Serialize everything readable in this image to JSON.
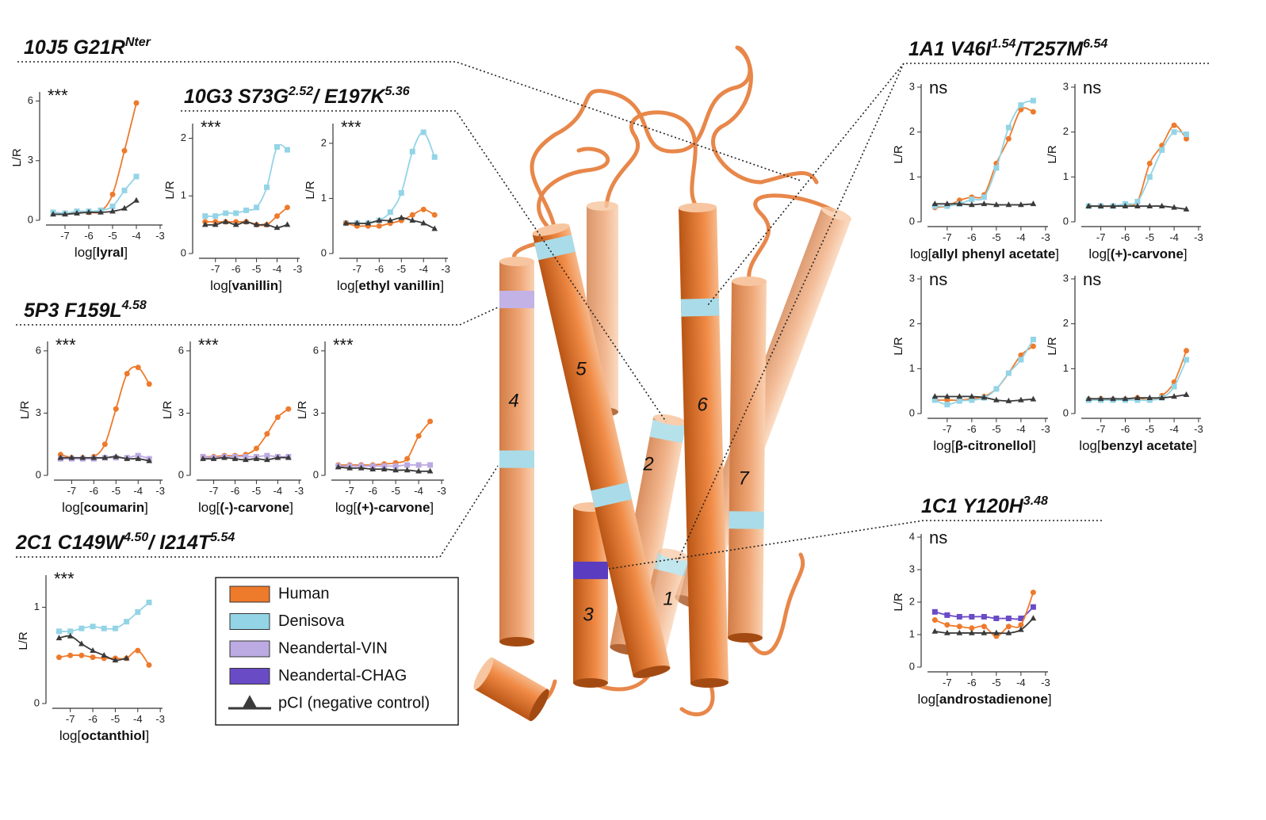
{
  "sections": [
    {
      "segments": [
        {
          "text": "10J5 G21R",
          "sup": false
        },
        {
          "text": "Nter",
          "sup": true
        }
      ]
    },
    {
      "segments": [
        {
          "text": "10G3 S73G",
          "sup": false
        },
        {
          "text": "2.52",
          "sup": true
        },
        {
          "text": "/ E197K",
          "sup": false
        },
        {
          "text": "5.36",
          "sup": true
        }
      ]
    },
    {
      "segments": [
        {
          "text": "5P3 F159L",
          "sup": false
        },
        {
          "text": "4.58",
          "sup": true
        }
      ]
    },
    {
      "segments": [
        {
          "text": "2C1 C149W",
          "sup": false
        },
        {
          "text": "4.50",
          "sup": true
        },
        {
          "text": "/ I214T",
          "sup": false
        },
        {
          "text": "5.54",
          "sup": true
        }
      ]
    },
    {
      "segments": [
        {
          "text": "1A1 V46I",
          "sup": false
        },
        {
          "text": "1.54",
          "sup": true
        },
        {
          "text": "/T257M",
          "sup": false
        },
        {
          "text": "6.54",
          "sup": true
        }
      ]
    },
    {
      "segments": [
        {
          "text": "1C1 Y120H",
          "sup": false
        },
        {
          "text": "3.48",
          "sup": true
        }
      ]
    }
  ],
  "legend": [
    {
      "name": "Human",
      "color": "#ee7a2c",
      "marker": "circle",
      "swatch": "box"
    },
    {
      "name": "Denisova",
      "color": "#93d4e6",
      "marker": "square",
      "swatch": "box"
    },
    {
      "name": "Neandertal-VIN",
      "color": "#bcaae2",
      "marker": "square",
      "swatch": "box"
    },
    {
      "name": "Neandertal-CHAG",
      "color": "#6a4bc6",
      "marker": "square",
      "swatch": "box"
    },
    {
      "name": "pCI (negative control)",
      "color": "#3a3a3a",
      "marker": "triangle",
      "swatch": "line"
    }
  ],
  "helix_labels": [
    "1",
    "2",
    "3",
    "4",
    "5",
    "6",
    "7"
  ],
  "chart_data": [
    {
      "type": "line",
      "ylabel": "L/R",
      "xlabel": "log[lyral]",
      "annotation": "***",
      "xlim": [
        -7.8,
        -2.9
      ],
      "xticks": [
        -7,
        -6,
        -5,
        -4,
        -3
      ],
      "ylim": [
        0,
        6.3
      ],
      "yticks": [
        0,
        3,
        6
      ],
      "x": [
        -7.5,
        -7,
        -6.5,
        -6,
        -5.5,
        -5,
        -4.5,
        -4
      ],
      "series": [
        {
          "name": "Human",
          "values": [
            0.4,
            0.35,
            0.4,
            0.4,
            0.45,
            1.3,
            3.5,
            5.9
          ]
        },
        {
          "name": "Denisova",
          "values": [
            0.4,
            0.35,
            0.45,
            0.45,
            0.5,
            0.7,
            1.5,
            2.2
          ]
        },
        {
          "name": "pCI (negative control)",
          "values": [
            0.3,
            0.3,
            0.35,
            0.4,
            0.4,
            0.45,
            0.6,
            1.0
          ]
        }
      ]
    },
    {
      "type": "line",
      "ylabel": "L/R",
      "xlabel": "log[vanillin]",
      "annotation": "***",
      "xlim": [
        -7.8,
        -2.9
      ],
      "xticks": [
        -7,
        -6,
        -5,
        -4,
        -3
      ],
      "ylim": [
        0,
        2.2
      ],
      "yticks": [
        0,
        1,
        2
      ],
      "x": [
        -7.5,
        -7,
        -6.5,
        -6,
        -5.5,
        -5,
        -4.5,
        -4,
        -3.5
      ],
      "series": [
        {
          "name": "Denisova",
          "values": [
            0.65,
            0.65,
            0.7,
            0.7,
            0.75,
            0.8,
            1.15,
            1.85,
            1.8
          ]
        },
        {
          "name": "Human",
          "values": [
            0.55,
            0.55,
            0.55,
            0.55,
            0.55,
            0.5,
            0.5,
            0.65,
            0.8
          ]
        },
        {
          "name": "pCI (negative control)",
          "values": [
            0.5,
            0.5,
            0.55,
            0.5,
            0.55,
            0.5,
            0.5,
            0.45,
            0.5
          ]
        }
      ]
    },
    {
      "type": "line",
      "ylabel": "L/R",
      "xlabel": "log[ethyl vanillin]",
      "annotation": "***",
      "xlim": [
        -7.8,
        -2.9
      ],
      "xticks": [
        -7,
        -6,
        -5,
        -4,
        -3
      ],
      "ylim": [
        0,
        2.3
      ],
      "yticks": [
        0,
        1,
        2
      ],
      "x": [
        -7.5,
        -7,
        -6.5,
        -6,
        -5.5,
        -5,
        -4.5,
        -4,
        -3.5
      ],
      "series": [
        {
          "name": "Denisova",
          "values": [
            0.55,
            0.55,
            0.55,
            0.6,
            0.75,
            1.1,
            1.85,
            2.2,
            1.75
          ]
        },
        {
          "name": "Human",
          "values": [
            0.55,
            0.5,
            0.5,
            0.5,
            0.55,
            0.6,
            0.7,
            0.8,
            0.7
          ]
        },
        {
          "name": "pCI (negative control)",
          "values": [
            0.55,
            0.55,
            0.55,
            0.6,
            0.6,
            0.65,
            0.6,
            0.55,
            0.45
          ]
        }
      ]
    },
    {
      "type": "line",
      "ylabel": "L/R",
      "xlabel": "log[coumarin]",
      "annotation": "***",
      "xlim": [
        -7.8,
        -2.9
      ],
      "xticks": [
        -7,
        -6,
        -5,
        -4,
        -3
      ],
      "ylim": [
        0,
        6.3
      ],
      "yticks": [
        0,
        3,
        6
      ],
      "x": [
        -7.5,
        -7,
        -6.5,
        -6,
        -5.5,
        -5,
        -4.5,
        -4,
        -3.5
      ],
      "series": [
        {
          "name": "Human",
          "values": [
            1.0,
            0.85,
            0.85,
            0.9,
            1.5,
            3.2,
            4.9,
            5.2,
            4.4
          ]
        },
        {
          "name": "Neandertal-VIN",
          "values": [
            0.8,
            0.8,
            0.8,
            0.8,
            0.85,
            0.85,
            0.85,
            0.95,
            0.8
          ]
        },
        {
          "name": "pCI (negative control)",
          "values": [
            0.85,
            0.85,
            0.85,
            0.85,
            0.85,
            0.9,
            0.8,
            0.8,
            0.7
          ]
        }
      ]
    },
    {
      "type": "line",
      "ylabel": "L/R",
      "xlabel": "log[(-)-carvone]",
      "annotation": "***",
      "xlim": [
        -7.8,
        -2.9
      ],
      "xticks": [
        -7,
        -6,
        -5,
        -4,
        -3
      ],
      "ylim": [
        0,
        6.3
      ],
      "yticks": [
        0,
        3,
        6
      ],
      "x": [
        -7.5,
        -7,
        -6.5,
        -6,
        -5.5,
        -5,
        -4.5,
        -4,
        -3.5
      ],
      "series": [
        {
          "name": "Human",
          "values": [
            0.9,
            0.9,
            0.95,
            0.95,
            1.0,
            1.3,
            2.0,
            2.8,
            3.2
          ]
        },
        {
          "name": "Neandertal-VIN",
          "values": [
            0.9,
            0.85,
            0.9,
            0.9,
            0.9,
            0.9,
            0.95,
            0.9,
            0.9
          ]
        },
        {
          "name": "pCI (negative control)",
          "values": [
            0.8,
            0.8,
            0.85,
            0.8,
            0.75,
            0.8,
            0.75,
            0.85,
            0.85
          ]
        }
      ]
    },
    {
      "type": "line",
      "ylabel": "L/R",
      "xlabel": "log[(+)-carvone]",
      "annotation": "***",
      "xlim": [
        -7.8,
        -2.9
      ],
      "xticks": [
        -7,
        -6,
        -5,
        -4,
        -3
      ],
      "ylim": [
        0,
        6.3
      ],
      "yticks": [
        0,
        3,
        6
      ],
      "x": [
        -7.5,
        -7,
        -6.5,
        -6,
        -5.5,
        -5,
        -4.5,
        -4,
        -3.5
      ],
      "series": [
        {
          "name": "Human",
          "values": [
            0.5,
            0.5,
            0.5,
            0.5,
            0.55,
            0.6,
            0.8,
            1.9,
            2.6
          ]
        },
        {
          "name": "Neandertal-VIN",
          "values": [
            0.45,
            0.45,
            0.45,
            0.45,
            0.45,
            0.45,
            0.5,
            0.5,
            0.5
          ]
        },
        {
          "name": "pCI (negative control)",
          "values": [
            0.4,
            0.35,
            0.35,
            0.3,
            0.3,
            0.25,
            0.25,
            0.2,
            0.2
          ]
        }
      ]
    },
    {
      "type": "line",
      "ylabel": "L/R",
      "xlabel": "log[octanthiol]",
      "annotation": "***",
      "xlim": [
        -7.8,
        -2.9
      ],
      "xticks": [
        -7,
        -6,
        -5,
        -4,
        -3
      ],
      "ylim": [
        0,
        1.3
      ],
      "yticks": [
        0,
        1
      ],
      "x": [
        -7.5,
        -7,
        -6.5,
        -6,
        -5.5,
        -5,
        -4.5,
        -4,
        -3.5
      ],
      "series": [
        {
          "name": "Denisova",
          "values": [
            0.75,
            0.75,
            0.78,
            0.8,
            0.78,
            0.78,
            0.85,
            0.95,
            1.05
          ]
        },
        {
          "name": "Human",
          "values": [
            0.48,
            0.5,
            0.5,
            0.48,
            0.47,
            0.47,
            0.47,
            0.55,
            0.4
          ]
        },
        {
          "name": "pCI (negative control)",
          "values": [
            0.68,
            0.7,
            0.62,
            0.55,
            0.5,
            0.45,
            0.47,
            null,
            null
          ]
        }
      ]
    },
    {
      "type": "line",
      "ylabel": "L/R",
      "xlabel": "log[allyl phenyl acetate]",
      "annotation": "ns",
      "xlim": [
        -7.8,
        -2.9
      ],
      "xticks": [
        -7,
        -6,
        -5,
        -4,
        -3
      ],
      "ylim": [
        0,
        3
      ],
      "yticks": [
        0,
        1,
        2,
        3
      ],
      "x": [
        -7.5,
        -7,
        -6.5,
        -6,
        -5.5,
        -5,
        -4.5,
        -4,
        -3.5
      ],
      "series": [
        {
          "name": "Human",
          "values": [
            0.32,
            0.35,
            0.48,
            0.55,
            0.6,
            1.3,
            1.85,
            2.5,
            2.45
          ]
        },
        {
          "name": "Denisova",
          "values": [
            0.35,
            0.35,
            0.4,
            0.5,
            0.55,
            1.2,
            2.1,
            2.6,
            2.7
          ]
        },
        {
          "name": "pCI (negative control)",
          "values": [
            0.4,
            0.4,
            0.4,
            0.38,
            0.4,
            0.38,
            0.38,
            0.38,
            0.4
          ]
        }
      ]
    },
    {
      "type": "line",
      "ylabel": "L/R",
      "xlabel": "log[(+)-carvone]",
      "annotation": "ns",
      "xlim": [
        -7.8,
        -2.9
      ],
      "xticks": [
        -7,
        -6,
        -5,
        -4,
        -3
      ],
      "ylim": [
        0,
        3
      ],
      "yticks": [
        0,
        1,
        2,
        3
      ],
      "x": [
        -7.5,
        -7,
        -6.5,
        -6,
        -5.5,
        -5,
        -4.5,
        -4,
        -3.5
      ],
      "series": [
        {
          "name": "Human",
          "values": [
            0.35,
            0.35,
            0.35,
            0.4,
            0.45,
            1.3,
            1.7,
            2.15,
            1.85
          ]
        },
        {
          "name": "Denisova",
          "values": [
            0.35,
            0.35,
            0.35,
            0.4,
            0.45,
            1.0,
            1.6,
            2.0,
            1.95
          ]
        },
        {
          "name": "pCI (negative control)",
          "values": [
            0.35,
            0.35,
            0.35,
            0.35,
            0.35,
            0.35,
            0.35,
            0.32,
            0.28
          ]
        }
      ]
    },
    {
      "type": "line",
      "ylabel": "L/R",
      "xlabel": "log[β-citronellol]",
      "annotation": "ns",
      "xlim": [
        -7.8,
        -2.9
      ],
      "xticks": [
        -7,
        -6,
        -5,
        -4,
        -3
      ],
      "ylim": [
        0,
        3
      ],
      "yticks": [
        0,
        1,
        2,
        3
      ],
      "x": [
        -7.5,
        -7,
        -6.5,
        -6,
        -5.5,
        -5,
        -4.5,
        -4,
        -3.5
      ],
      "series": [
        {
          "name": "Human",
          "values": [
            0.3,
            0.3,
            0.3,
            0.33,
            0.38,
            0.55,
            0.9,
            1.3,
            1.5
          ]
        },
        {
          "name": "Denisova",
          "values": [
            0.3,
            0.2,
            0.28,
            0.3,
            0.35,
            0.55,
            0.9,
            1.2,
            1.65
          ]
        },
        {
          "name": "pCI (negative control)",
          "values": [
            0.38,
            0.38,
            0.38,
            0.38,
            0.36,
            0.3,
            0.28,
            0.3,
            0.32
          ]
        }
      ]
    },
    {
      "type": "line",
      "ylabel": "L/R",
      "xlabel": "log[benzyl acetate]",
      "annotation": "ns",
      "xlim": [
        -7.8,
        -2.9
      ],
      "xticks": [
        -7,
        -6,
        -5,
        -4,
        -3
      ],
      "ylim": [
        0,
        3
      ],
      "yticks": [
        0,
        1,
        2,
        3
      ],
      "x": [
        -7.5,
        -7,
        -6.5,
        -6,
        -5.5,
        -5,
        -4.5,
        -4,
        -3.5
      ],
      "series": [
        {
          "name": "Human",
          "values": [
            0.32,
            0.33,
            0.32,
            0.32,
            0.35,
            0.3,
            0.4,
            0.7,
            1.4
          ]
        },
        {
          "name": "Denisova",
          "values": [
            0.3,
            0.3,
            0.3,
            0.3,
            0.3,
            0.3,
            0.35,
            0.6,
            1.2
          ]
        },
        {
          "name": "pCI (negative control)",
          "values": [
            0.33,
            0.33,
            0.33,
            0.33,
            0.35,
            0.35,
            0.35,
            0.38,
            0.42
          ]
        }
      ]
    },
    {
      "type": "line",
      "ylabel": "L/R",
      "xlabel": "log[androstadienone]",
      "annotation": "ns",
      "xlim": [
        -7.8,
        -2.9
      ],
      "xticks": [
        -7,
        -6,
        -5,
        -4,
        -3
      ],
      "ylim": [
        0,
        4
      ],
      "yticks": [
        0,
        1,
        2,
        3,
        4
      ],
      "x": [
        -7.5,
        -7,
        -6.5,
        -6,
        -5.5,
        -5,
        -4.5,
        -4,
        -3.5
      ],
      "series": [
        {
          "name": "Neandertal-CHAG",
          "values": [
            1.7,
            1.6,
            1.55,
            1.55,
            1.55,
            1.5,
            1.5,
            1.5,
            1.85
          ]
        },
        {
          "name": "Human",
          "values": [
            1.45,
            1.3,
            1.25,
            1.2,
            1.25,
            0.95,
            1.25,
            1.3,
            2.3
          ]
        },
        {
          "name": "pCI (negative control)",
          "values": [
            1.1,
            1.05,
            1.05,
            1.05,
            1.05,
            1.05,
            1.05,
            1.15,
            1.5
          ]
        }
      ]
    }
  ]
}
